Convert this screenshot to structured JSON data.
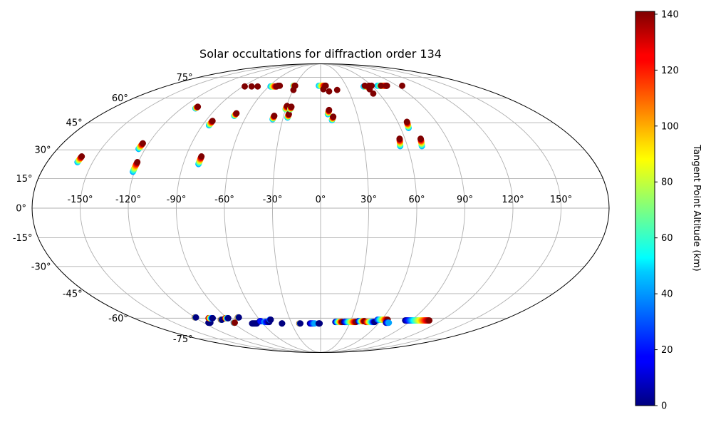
{
  "chart_data": {
    "type": "scatter",
    "projection": "mollweide",
    "title": "Solar occultations for diffraction order 134",
    "x_tick_labels": [
      "-150°",
      "-120°",
      "-90°",
      "-60°",
      "-30°",
      "0°",
      "30°",
      "60°",
      "90°",
      "120°",
      "150°"
    ],
    "x_tick_values": [
      -150,
      -120,
      -90,
      -60,
      -30,
      0,
      30,
      60,
      90,
      120,
      150
    ],
    "y_tick_labels": [
      "-75°",
      "-60°",
      "-45°",
      "-30°",
      "-15°",
      "0°",
      "15°",
      "30°",
      "45°",
      "60°",
      "75°"
    ],
    "y_tick_values": [
      -75,
      -60,
      -45,
      -30,
      -15,
      0,
      15,
      30,
      45,
      60,
      75
    ],
    "colorbar": {
      "label": "Tangent Point Altitude (km)",
      "ticks": [
        0,
        20,
        40,
        60,
        80,
        100,
        120,
        140
      ],
      "tick_labels": [
        "0",
        "20",
        "40",
        "60",
        "80",
        "100",
        "120",
        "140"
      ],
      "min": 0,
      "max": 141,
      "colormap": "jet"
    },
    "tracks": [
      {
        "lon": -160,
        "lat_start": 23.5,
        "lat_end": 26.5,
        "alt_start": 40,
        "alt_end": 141
      },
      {
        "lon": -124.5,
        "lat_start": 30.5,
        "lat_end": 33.5,
        "alt_start": 40,
        "alt_end": 141
      },
      {
        "lon": -121,
        "lat_start": 18.5,
        "lat_end": 23.5,
        "alt_start": 40,
        "alt_end": 141
      },
      {
        "lon": -108,
        "lat_start": 53.5,
        "lat_end": 54.5,
        "alt_start": 40,
        "alt_end": 141
      },
      {
        "lon": -85,
        "lat_start": 43.5,
        "lat_end": 46,
        "alt_start": 40,
        "alt_end": 141
      },
      {
        "lon": -80,
        "lat_start": 22.5,
        "lat_end": 26.5,
        "alt_start": 40,
        "alt_end": 141
      },
      {
        "lon": -70,
        "lat_start": 49,
        "lat_end": 50.5,
        "alt_start": 40,
        "alt_end": 141
      },
      {
        "lon": -38,
        "lat_start": 47,
        "lat_end": 49,
        "alt_start": 40,
        "alt_end": 141
      },
      {
        "lon": -30,
        "lat_start": 53,
        "lat_end": 55,
        "alt_start": 60,
        "alt_end": 141
      },
      {
        "lon": -26.5,
        "lat_start": 48,
        "lat_end": 50,
        "alt_start": 40,
        "alt_end": 141
      },
      {
        "lon": -26,
        "lat_start": 53,
        "lat_end": 54.5,
        "alt_start": 60,
        "alt_end": 141
      },
      {
        "lon": 6,
        "lat_start": 50,
        "lat_end": 52.5,
        "alt_start": 40,
        "alt_end": 141
      },
      {
        "lon": 9,
        "lat_start": 46.5,
        "lat_end": 48.5,
        "alt_start": 40,
        "alt_end": 141
      },
      {
        "lon": 55,
        "lat_start": 32,
        "lat_end": 36,
        "alt_start": 40,
        "alt_end": 141
      },
      {
        "lon": 70,
        "lat_start": 32,
        "lat_end": 36,
        "alt_start": 40,
        "alt_end": 141
      },
      {
        "lon": 66,
        "lat_start": 42,
        "lat_end": 45.5,
        "alt_start": 40,
        "alt_end": 141
      }
    ],
    "points": [
      {
        "lon": -88,
        "lat": 68,
        "alt": 141
      },
      {
        "lon": -80,
        "lat": 68,
        "alt": 141
      },
      {
        "lon": -73,
        "lat": 68,
        "alt": 141
      },
      {
        "lon": -50,
        "lat": 68.5,
        "alt": 141
      },
      {
        "lon": -48,
        "lat": 68.5,
        "alt": 141
      },
      {
        "lon": -30,
        "lat": 68.5,
        "alt": 141
      },
      {
        "lon": -29.5,
        "lat": 65.5,
        "alt": 141
      },
      {
        "lon": 3,
        "lat": 66,
        "alt": 141
      },
      {
        "lon": 6,
        "lat": 68.5,
        "alt": 141
      },
      {
        "lon": 9,
        "lat": 64.5,
        "alt": 141
      },
      {
        "lon": 18,
        "lat": 65.5,
        "alt": 141
      },
      {
        "lon": 54,
        "lat": 66,
        "alt": 141
      },
      {
        "lon": 54,
        "lat": 63,
        "alt": 141
      },
      {
        "lon": 52,
        "lat": 68.5,
        "alt": 141
      },
      {
        "lon": 57,
        "lat": 68.5,
        "alt": 141
      },
      {
        "lon": 60,
        "lat": 68.5,
        "alt": 141
      },
      {
        "lon": 71,
        "lat": 68.5,
        "alt": 141
      },
      {
        "lon": 78,
        "lat": 68.5,
        "alt": 141
      },
      {
        "lon": 96,
        "lat": 68.5,
        "alt": 141
      }
    ],
    "north_groups": [
      {
        "lon_start": -58,
        "lon_end": -51,
        "lat": 68,
        "alt_start": 40,
        "alt_end": 141
      },
      {
        "lon_start": -32,
        "lon_end": -30,
        "lat": 68.5,
        "alt_start": 50,
        "alt_end": 141
      },
      {
        "lon_start": -2,
        "lon_end": 6,
        "lat": 68.5,
        "alt_start": 40,
        "alt_end": 141
      },
      {
        "lon_start": 50,
        "lon_end": 56,
        "lat": 68,
        "alt_start": 40,
        "alt_end": 141
      },
      {
        "lon_start": 67,
        "lon_end": 78,
        "lat": 68.5,
        "alt_start": 40,
        "alt_end": 141
      }
    ],
    "south_groups": [
      {
        "lon_start": -120,
        "lon_end": -119,
        "lat": -59.5,
        "alt_start": 141,
        "alt_end": 0
      },
      {
        "lon_start": -115,
        "lon_end": -113,
        "lat": -63,
        "alt_start": 0,
        "alt_end": 0
      },
      {
        "lon_start": -108,
        "lon_end": -104,
        "lat": -60,
        "alt_start": 141,
        "alt_end": 0
      },
      {
        "lon_start": -98,
        "lon_end": -97,
        "lat": -61,
        "alt_start": 141,
        "alt_end": 0
      },
      {
        "lon_start": -92,
        "lon_end": -89,
        "lat": -60,
        "alt_start": 141,
        "alt_end": 0
      },
      {
        "lon_start": -89,
        "lon_end": -88,
        "lat": -63,
        "alt_start": 0,
        "alt_end": 141
      },
      {
        "lon_start": -79,
        "lon_end": -78,
        "lat": -59.5,
        "alt_start": 141,
        "alt_end": 0
      },
      {
        "lon_start": -71,
        "lon_end": -66,
        "lat": -63.5,
        "alt_start": 0,
        "alt_end": 0
      },
      {
        "lon_start": -61,
        "lon_end": -60,
        "lat": -62,
        "alt_start": 0,
        "alt_end": 20
      },
      {
        "lon_start": -57,
        "lon_end": -52,
        "lat": -62.5,
        "alt_start": 40,
        "alt_end": 0
      },
      {
        "lon_start": -50,
        "lon_end": -49,
        "lat": -61,
        "alt_start": 40,
        "alt_end": 0
      },
      {
        "lon_start": -40,
        "lon_end": -40,
        "lat": -63.5,
        "alt_start": 0,
        "alt_end": 0
      },
      {
        "lon_start": -22,
        "lon_end": -21,
        "lat": -63.5,
        "alt_start": 141,
        "alt_end": 0
      },
      {
        "lon_start": -11,
        "lon_end": -6,
        "lat": -63.5,
        "alt_start": 0,
        "alt_end": 40
      },
      {
        "lon_start": -2,
        "lon_end": -1,
        "lat": -63.5,
        "alt_start": 0,
        "alt_end": 0
      },
      {
        "lon_start": 15,
        "lon_end": 22,
        "lat": -62.5,
        "alt_start": 0,
        "alt_end": 141
      },
      {
        "lon_start": 24,
        "lon_end": 36,
        "lat": -62.5,
        "alt_start": 0,
        "alt_end": 141
      },
      {
        "lon_start": 38,
        "lon_end": 44,
        "lat": -62,
        "alt_start": 0,
        "alt_end": 141
      },
      {
        "lon_start": 46,
        "lon_end": 55,
        "lat": -62.5,
        "alt_start": 141,
        "alt_end": 0
      },
      {
        "lon_start": 56,
        "lon_end": 66,
        "lat": -61,
        "alt_start": 20,
        "alt_end": 141
      },
      {
        "lon_start": 67,
        "lon_end": 70,
        "lat": -63,
        "alt_start": 0,
        "alt_end": 40
      },
      {
        "lon_start": 84,
        "lon_end": 108,
        "lat": -61.5,
        "alt_start": 0,
        "alt_end": 141
      }
    ]
  }
}
